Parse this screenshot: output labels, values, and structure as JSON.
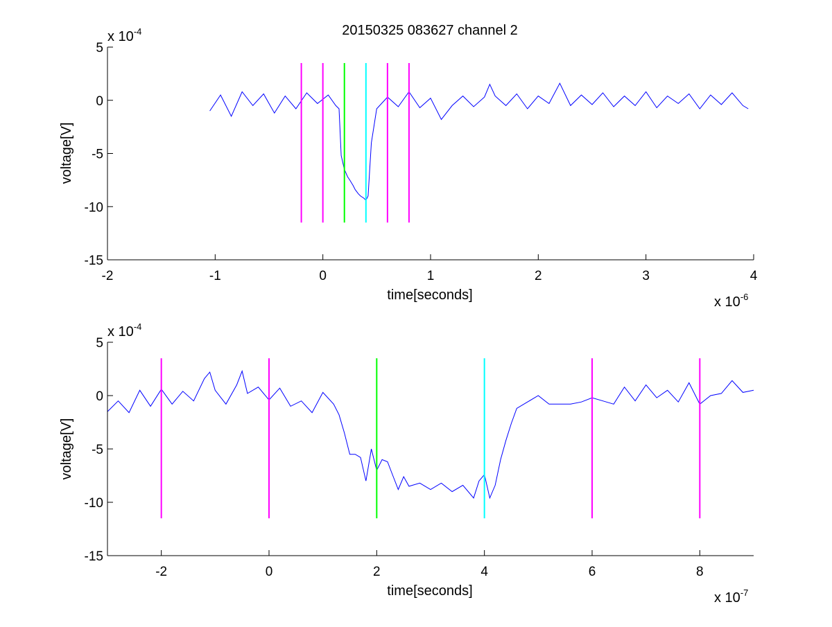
{
  "figure": {
    "title": "20150325 083627 channel 2"
  },
  "chart_data": [
    {
      "type": "line",
      "title": "20150325 083627 channel 2",
      "xlabel": "time[seconds]",
      "ylabel": "voltage[V]",
      "x_scale_label": "x 10",
      "x_scale_exponent": "-6",
      "y_scale_label": "x 10",
      "y_scale_exponent": "-4",
      "xlim": [
        -2,
        4
      ],
      "ylim": [
        -15,
        5
      ],
      "xticks": [
        "-2",
        "-1",
        "0",
        "1",
        "2",
        "3",
        "4"
      ],
      "yticks": [
        "5",
        "0",
        "-5",
        "-10",
        "-15"
      ],
      "grid": false,
      "series": [
        {
          "color": "#0000ff",
          "x": [
            -1.05,
            -0.95,
            -0.85,
            -0.75,
            -0.65,
            -0.55,
            -0.45,
            -0.35,
            -0.25,
            -0.15,
            -0.05,
            0.05,
            0.12,
            0.15,
            0.17,
            0.2,
            0.23,
            0.25,
            0.28,
            0.3,
            0.33,
            0.35,
            0.38,
            0.4,
            0.42,
            0.45,
            0.5,
            0.6,
            0.7,
            0.8,
            0.9,
            1.0,
            1.1,
            1.2,
            1.3,
            1.4,
            1.5,
            1.55,
            1.6,
            1.7,
            1.8,
            1.9,
            2.0,
            2.1,
            2.2,
            2.3,
            2.4,
            2.5,
            2.6,
            2.7,
            2.8,
            2.9,
            3.0,
            3.1,
            3.2,
            3.3,
            3.4,
            3.5,
            3.6,
            3.7,
            3.8,
            3.9,
            3.95
          ],
          "y": [
            -1.0,
            0.5,
            -1.5,
            0.8,
            -0.5,
            0.6,
            -1.2,
            0.4,
            -0.8,
            0.7,
            -0.3,
            0.5,
            -0.5,
            -0.8,
            -5.2,
            -6.5,
            -7.2,
            -7.5,
            -8.0,
            -8.4,
            -8.8,
            -9.0,
            -9.2,
            -9.4,
            -9.0,
            -4.0,
            -0.8,
            0.3,
            -0.6,
            0.8,
            -0.7,
            0.2,
            -1.8,
            -0.5,
            0.4,
            -0.6,
            0.3,
            1.5,
            0.4,
            -0.5,
            0.6,
            -0.8,
            0.4,
            -0.3,
            1.6,
            -0.5,
            0.5,
            -0.4,
            0.7,
            -0.6,
            0.4,
            -0.5,
            0.8,
            -0.7,
            0.4,
            -0.3,
            0.6,
            -0.8,
            0.5,
            -0.4,
            0.7,
            -0.5,
            -0.8
          ]
        }
      ],
      "markers": [
        {
          "x": -0.2,
          "color": "#ff00ff"
        },
        {
          "x": 0.0,
          "color": "#ff00ff"
        },
        {
          "x": 0.2,
          "color": "#00ff00"
        },
        {
          "x": 0.4,
          "color": "#00ffff"
        },
        {
          "x": 0.6,
          "color": "#ff00ff"
        },
        {
          "x": 0.8,
          "color": "#ff00ff"
        }
      ],
      "marker_yrange": [
        -11.5,
        3.5
      ]
    },
    {
      "type": "line",
      "title": "",
      "xlabel": "time[seconds]",
      "ylabel": "voltage[V]",
      "x_scale_label": "x 10",
      "x_scale_exponent": "-7",
      "y_scale_label": "x 10",
      "y_scale_exponent": "-4",
      "xlim": [
        -3,
        9
      ],
      "ylim": [
        -15,
        5
      ],
      "xticks": [
        "-2",
        "0",
        "2",
        "4",
        "6",
        "8"
      ],
      "yticks": [
        "5",
        "0",
        "-5",
        "-10",
        "-15"
      ],
      "grid": false,
      "series": [
        {
          "color": "#0000ff",
          "x": [
            -3.0,
            -2.8,
            -2.6,
            -2.4,
            -2.2,
            -2.0,
            -1.8,
            -1.6,
            -1.4,
            -1.2,
            -1.1,
            -1.0,
            -0.8,
            -0.6,
            -0.5,
            -0.4,
            -0.2,
            0.0,
            0.2,
            0.4,
            0.6,
            0.8,
            1.0,
            1.2,
            1.3,
            1.4,
            1.5,
            1.6,
            1.7,
            1.8,
            1.9,
            2.0,
            2.1,
            2.2,
            2.3,
            2.4,
            2.5,
            2.6,
            2.8,
            3.0,
            3.2,
            3.4,
            3.6,
            3.8,
            3.9,
            4.0,
            4.1,
            4.2,
            4.3,
            4.4,
            4.5,
            4.6,
            4.8,
            5.0,
            5.2,
            5.4,
            5.6,
            5.8,
            6.0,
            6.2,
            6.4,
            6.6,
            6.8,
            7.0,
            7.2,
            7.4,
            7.6,
            7.8,
            8.0,
            8.2,
            8.4,
            8.6,
            8.8,
            9.0
          ],
          "y": [
            -1.5,
            -0.5,
            -1.6,
            0.5,
            -1.0,
            0.6,
            -0.8,
            0.4,
            -0.5,
            1.6,
            2.2,
            0.5,
            -0.8,
            1.0,
            2.3,
            0.2,
            0.8,
            -0.4,
            0.7,
            -1.0,
            -0.5,
            -1.6,
            0.3,
            -0.8,
            -1.8,
            -3.5,
            -5.5,
            -5.5,
            -5.8,
            -8.0,
            -5.0,
            -7.0,
            -6.0,
            -6.2,
            -7.5,
            -8.8,
            -7.6,
            -8.5,
            -8.2,
            -8.8,
            -8.2,
            -9.0,
            -8.4,
            -9.6,
            -8.0,
            -7.4,
            -9.6,
            -8.4,
            -6.0,
            -4.2,
            -2.6,
            -1.2,
            -0.6,
            0.0,
            -0.8,
            -0.8,
            -0.8,
            -0.6,
            -0.2,
            -0.5,
            -0.8,
            0.8,
            -0.5,
            1.0,
            -0.2,
            0.5,
            -0.6,
            1.2,
            -0.8,
            0.0,
            0.2,
            1.4,
            0.3,
            0.5
          ]
        }
      ],
      "markers": [
        {
          "x": -2.0,
          "color": "#ff00ff"
        },
        {
          "x": 0.0,
          "color": "#ff00ff"
        },
        {
          "x": 2.0,
          "color": "#00ff00"
        },
        {
          "x": 4.0,
          "color": "#00ffff"
        },
        {
          "x": 6.0,
          "color": "#ff00ff"
        },
        {
          "x": 8.0,
          "color": "#ff00ff"
        }
      ],
      "marker_yrange": [
        -11.5,
        3.5
      ]
    }
  ]
}
